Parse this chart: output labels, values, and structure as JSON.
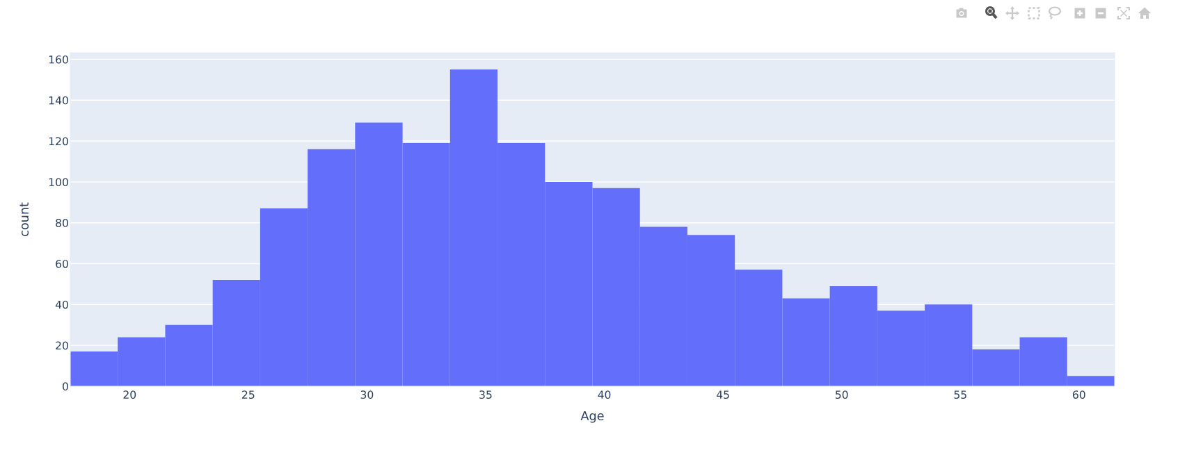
{
  "chart_data": {
    "type": "histogram",
    "xlabel": "Age",
    "ylabel": "count",
    "bins": [
      17.5,
      19.5,
      21.5,
      23.5,
      25.5,
      27.5,
      29.5,
      31.5,
      33.5,
      35.5,
      37.5,
      39.5,
      41.5,
      43.5,
      45.5,
      47.5,
      49.5,
      51.5,
      53.5,
      55.5,
      57.5,
      59.5,
      61.5
    ],
    "values": [
      17,
      24,
      30,
      52,
      87,
      116,
      129,
      119,
      155,
      119,
      100,
      97,
      78,
      74,
      57,
      43,
      49,
      37,
      40,
      18,
      24,
      5
    ],
    "color": "#636efa",
    "xlim": [
      17.5,
      61.5
    ],
    "ylim": [
      0,
      163.2
    ],
    "xticks": [
      20,
      25,
      30,
      35,
      40,
      45,
      50,
      55,
      60
    ],
    "yticks": [
      0,
      20,
      40,
      60,
      80,
      100,
      120,
      140,
      160
    ],
    "grid": "y"
  }
}
